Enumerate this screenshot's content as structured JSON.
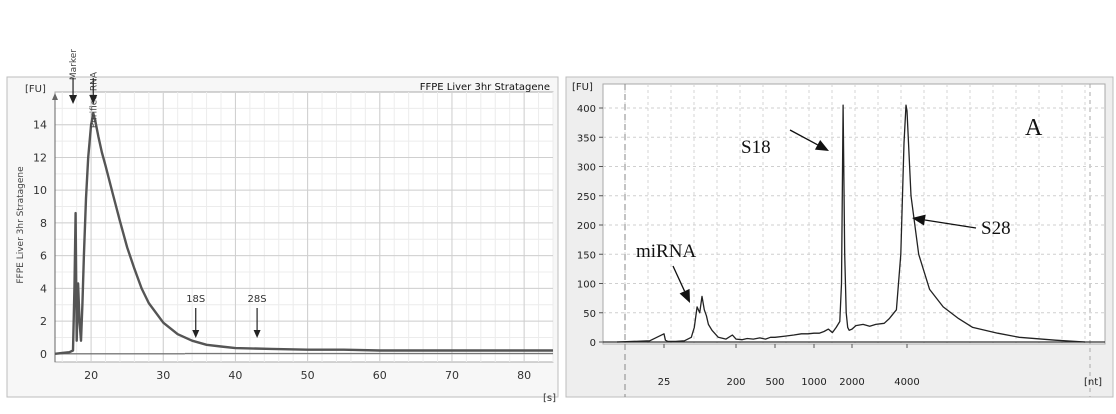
{
  "chart_data": [
    {
      "type": "line",
      "title": "FFPE Liver 3hr Stratagene",
      "ylabel": "FFPE Liver 3hr Stratagene",
      "y_unit": "[FU]",
      "x_unit": "[s]",
      "xlim": [
        15,
        84
      ],
      "ylim": [
        -0.5,
        16
      ],
      "x_ticks": [
        "20",
        "30",
        "40",
        "50",
        "60",
        "70",
        "80"
      ],
      "y_ticks": [
        "0",
        "2",
        "4",
        "6",
        "8",
        "10",
        "12",
        "14"
      ],
      "top_labels": [
        {
          "text": "Marker",
          "x": 17.5
        },
        {
          "text": "Purified RNA",
          "x": 20.3
        }
      ],
      "annotations": [
        {
          "text": "18S",
          "x": 34.5,
          "y": 1.3
        },
        {
          "text": "28S",
          "x": 43.0,
          "y": 1.3
        }
      ],
      "series": [
        {
          "x": [
            15,
            16,
            17,
            17.5,
            17.7,
            17.85,
            18.0,
            18.2,
            18.4,
            18.6,
            18.8,
            19.0,
            19.3,
            19.6,
            20.0,
            20.3,
            20.6,
            21.0,
            21.5,
            22.0,
            23.0,
            24.0,
            25.0,
            26.0,
            27.0,
            28.0,
            30.0,
            32.0,
            34.0,
            36.0,
            38.0,
            40.0,
            45.0,
            50.0,
            55.0,
            60.0,
            70.0,
            80.0,
            84.0
          ],
          "y": [
            0.0,
            0.05,
            0.1,
            0.2,
            4.2,
            8.6,
            0.8,
            4.3,
            2.0,
            0.8,
            3.0,
            6.0,
            9.5,
            12.0,
            14.0,
            14.7,
            14.2,
            13.3,
            12.3,
            11.5,
            9.8,
            8.1,
            6.5,
            5.2,
            4.0,
            3.1,
            1.9,
            1.2,
            0.8,
            0.55,
            0.45,
            0.35,
            0.3,
            0.25,
            0.25,
            0.2,
            0.2,
            0.2,
            0.2
          ]
        }
      ]
    },
    {
      "type": "line",
      "y_unit": "[FU]",
      "x_unit": "[nt]",
      "ylim": [
        -20,
        420
      ],
      "x_ticks": [
        "25",
        "200",
        "500",
        "1000",
        "2000",
        "4000"
      ],
      "y_ticks": [
        "0",
        "50",
        "100",
        "150",
        "200",
        "250",
        "300",
        "350",
        "400"
      ],
      "annotations": [
        {
          "text": "S18",
          "x": 1700,
          "y": 330
        },
        {
          "text": "S28",
          "x": 4000,
          "y": 210
        },
        {
          "text": "miRNA",
          "x": 75,
          "y": 65
        },
        {
          "text": "A",
          "x": 6000,
          "y": 385
        }
      ],
      "series": [
        {
          "x": [
            12,
            20,
            25,
            26,
            28,
            35,
            45,
            55,
            60,
            65,
            70,
            75,
            80,
            85,
            90,
            100,
            120,
            150,
            180,
            200,
            230,
            260,
            300,
            350,
            400,
            450,
            500,
            600,
            700,
            800,
            900,
            1000,
            1100,
            1200,
            1300,
            1400,
            1500,
            1600,
            1650,
            1700,
            1750,
            1800,
            1850,
            1900,
            2000,
            2100,
            2300,
            2500,
            2700,
            3000,
            3200,
            3500,
            3700,
            3850,
            3950,
            4000,
            4100,
            4300,
            4600,
            5000,
            5500,
            6000,
            7000,
            8000,
            10000,
            12000
          ],
          "y": [
            0,
            2,
            14,
            3,
            1,
            1,
            2,
            8,
            25,
            60,
            50,
            78,
            55,
            45,
            30,
            20,
            8,
            5,
            12,
            5,
            4,
            6,
            5,
            7,
            5,
            8,
            8,
            10,
            12,
            14,
            14,
            15,
            15,
            18,
            22,
            16,
            25,
            35,
            100,
            405,
            150,
            50,
            25,
            20,
            22,
            28,
            30,
            27,
            30,
            32,
            40,
            55,
            150,
            340,
            405,
            395,
            250,
            150,
            90,
            60,
            40,
            25,
            15,
            8,
            3,
            0
          ]
        }
      ]
    }
  ]
}
